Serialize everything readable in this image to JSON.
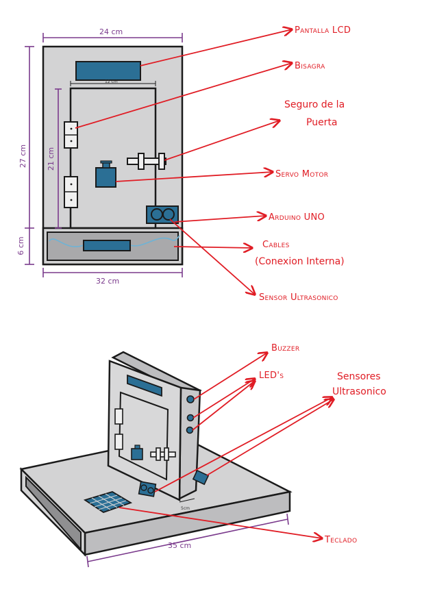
{
  "colors": {
    "box": "#d3d3d4",
    "box_dark": "#a9a9ab",
    "component": "#2b6f95",
    "outline": "#1a1a1a",
    "label": "#e01c24",
    "dimension": "#7a3a8c",
    "cable": "#6db3d6"
  },
  "front_view": {
    "dimensions": {
      "top_width": "24 cm",
      "inner_width": "12 cm",
      "total_height": "27 cm",
      "door_height": "21 cm",
      "base_height": "6 cm",
      "bottom_width": "32 cm"
    },
    "labels": {
      "lcd": "Pantalla LCD",
      "hinge": "Bisagra",
      "lock_line1": "Seguro de la",
      "lock_line2": "Puerta",
      "servo": "Servo Motor",
      "arduino": "Arduino UNO",
      "cables_line1": "Cables",
      "cables_line2": "(Conexion Interna)",
      "ultrasonic": "Sensor Ultrasonico"
    }
  },
  "iso_view": {
    "dimensions": {
      "width": "35 cm",
      "gap": "5cm"
    },
    "labels": {
      "buzzer": "Buzzer",
      "leds": "LED's",
      "sensors_line1": "Sensores",
      "sensors_line2": "Ultrasonico",
      "keypad": "Teclado"
    }
  }
}
